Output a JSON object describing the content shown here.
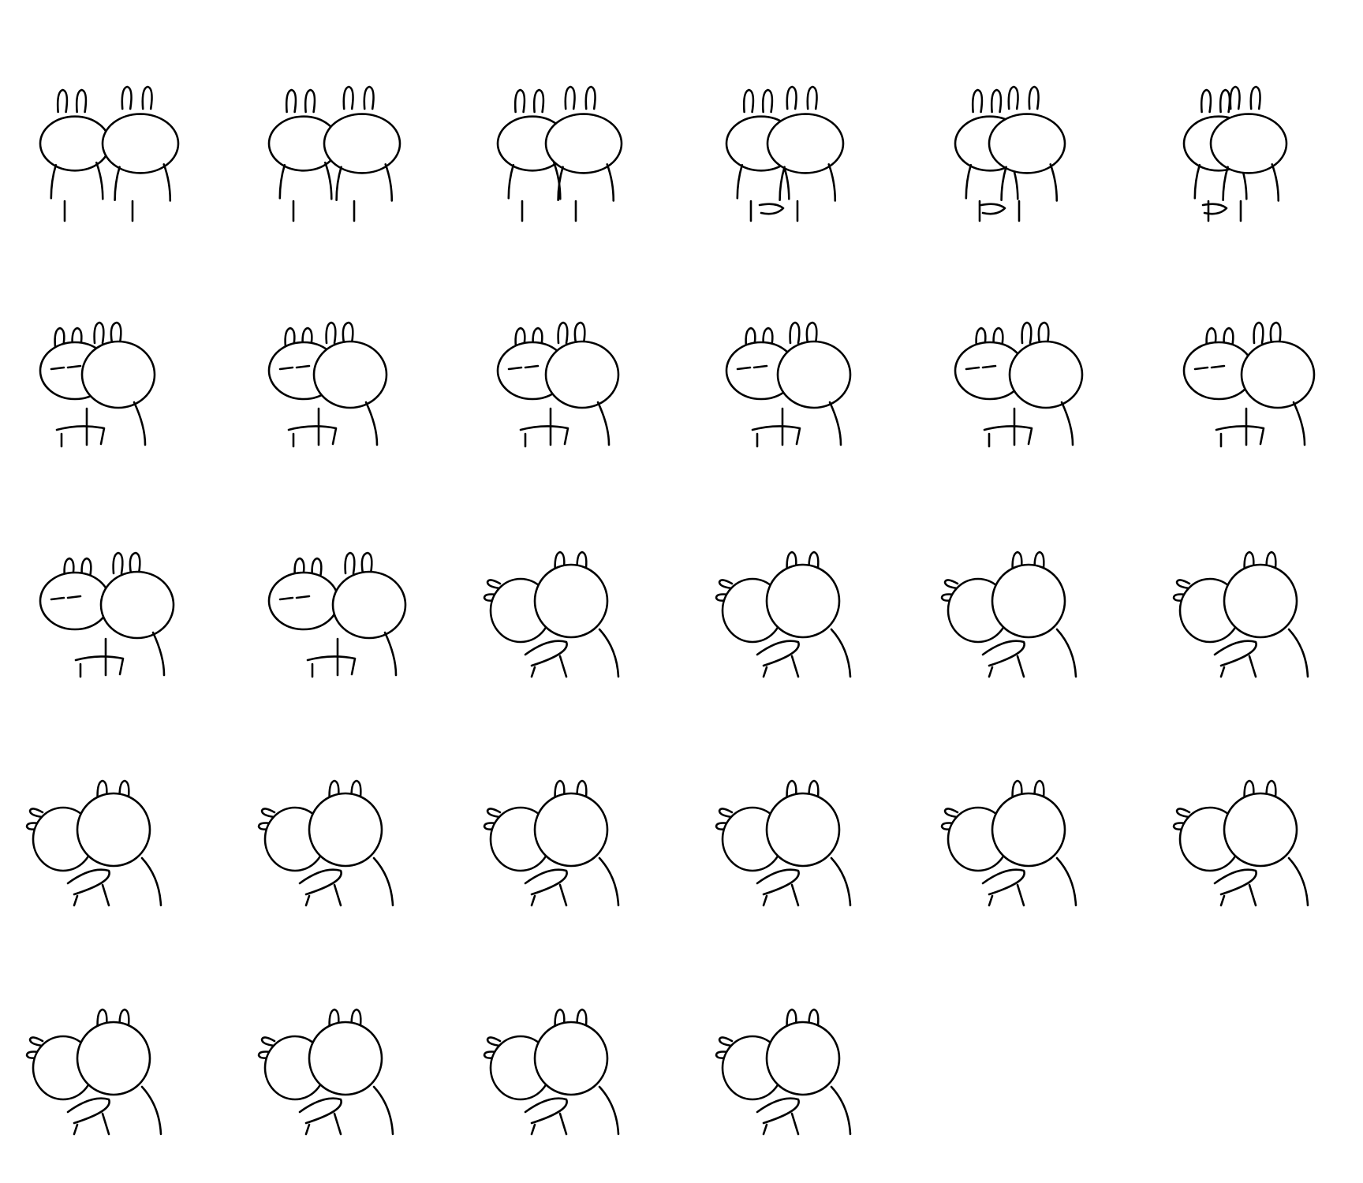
{
  "sheet": {
    "background": "#ffffff",
    "line_color": "#000000",
    "frame_count": 28,
    "columns": 6
  },
  "frames": [
    {
      "pose": "side-by-side"
    },
    {
      "pose": "side-by-side"
    },
    {
      "pose": "side-by-side"
    },
    {
      "pose": "side-by-side"
    },
    {
      "pose": "side-by-side"
    },
    {
      "pose": "side-by-side"
    },
    {
      "pose": "turn"
    },
    {
      "pose": "turn"
    },
    {
      "pose": "turn"
    },
    {
      "pose": "turn"
    },
    {
      "pose": "turn"
    },
    {
      "pose": "turn"
    },
    {
      "pose": "turn"
    },
    {
      "pose": "turn"
    },
    {
      "pose": "hug"
    },
    {
      "pose": "hug"
    },
    {
      "pose": "hug"
    },
    {
      "pose": "hug"
    },
    {
      "pose": "hug"
    },
    {
      "pose": "hug"
    },
    {
      "pose": "hug"
    },
    {
      "pose": "hug"
    },
    {
      "pose": "hug"
    },
    {
      "pose": "hug"
    },
    {
      "pose": "hug"
    },
    {
      "pose": "hug"
    },
    {
      "pose": "hug"
    },
    {
      "pose": "hug"
    }
  ]
}
